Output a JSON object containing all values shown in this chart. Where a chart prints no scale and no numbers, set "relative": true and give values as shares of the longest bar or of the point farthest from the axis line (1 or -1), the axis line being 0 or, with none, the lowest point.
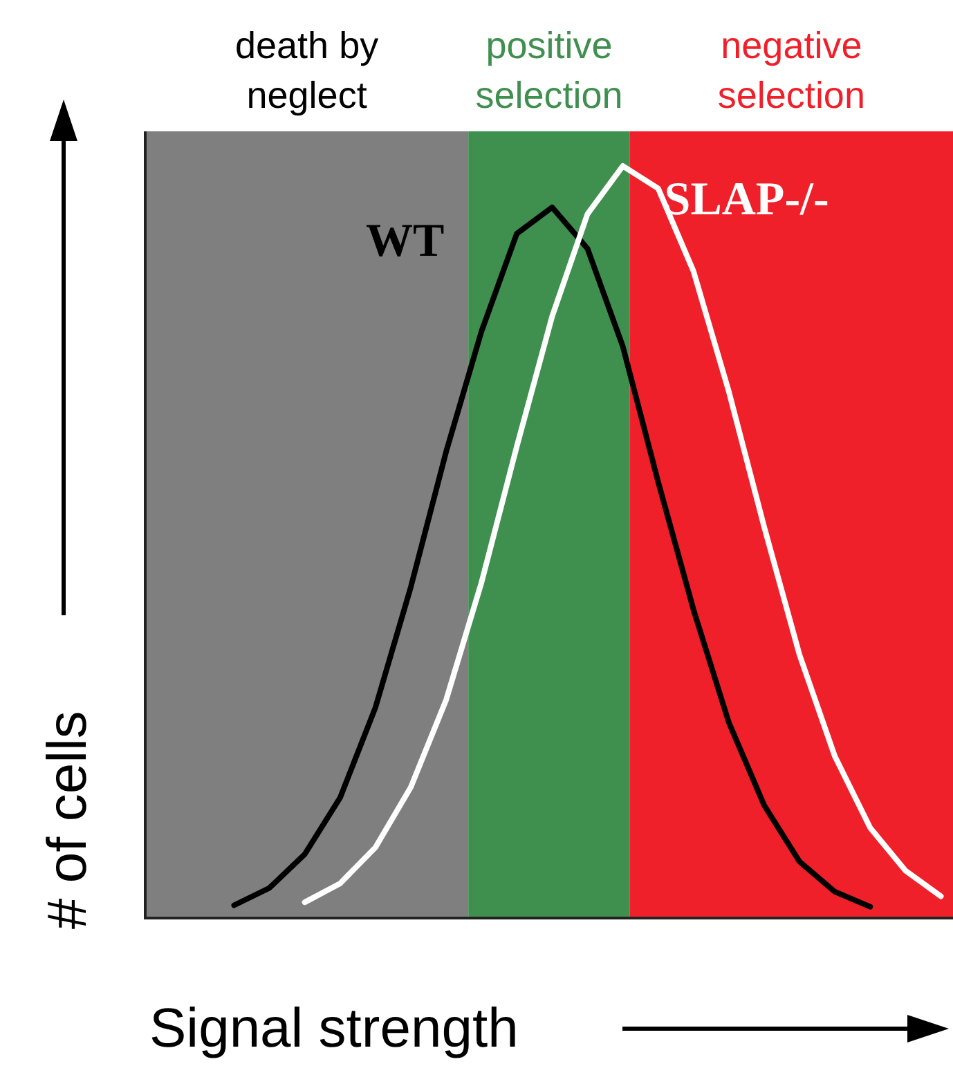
{
  "chart_data": {
    "type": "line",
    "relative": true,
    "xlabel": "Signal strength",
    "ylabel": "# of cells",
    "marker": "none",
    "categories": [
      null,
      null,
      null,
      null,
      null,
      null,
      null,
      null,
      null,
      null,
      null,
      null,
      null,
      null,
      null,
      null,
      null,
      null,
      null,
      null,
      null
    ],
    "annotations": [
      "death by neglect",
      "positive selection",
      "negative selection"
    ],
    "series": [
      {
        "name": "WT",
        "color": "#000000",
        "values": [
          0.017,
          0.04,
          0.085,
          0.16,
          0.28,
          0.44,
          0.62,
          0.78,
          0.91,
          0.945,
          0.89,
          0.76,
          0.58,
          0.41,
          0.26,
          0.15,
          0.075,
          0.035,
          0.015,
          null,
          null
        ]
      },
      {
        "name": "SLAP-/-",
        "color": "#ffffff",
        "values": [
          null,
          null,
          0.021,
          0.046,
          0.094,
          0.174,
          0.29,
          0.446,
          0.627,
          0.8,
          0.936,
          1,
          0.97,
          0.86,
          0.7,
          0.52,
          0.35,
          0.215,
          0.12,
          0.063,
          0.029
        ]
      }
    ]
  }
}
